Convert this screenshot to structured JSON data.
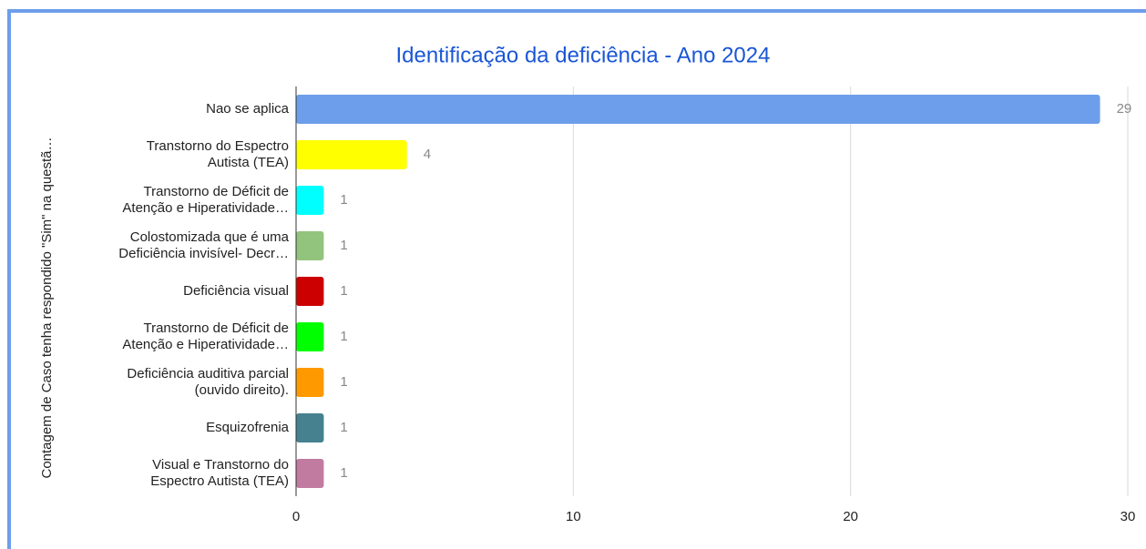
{
  "chart_data": {
    "type": "bar",
    "orientation": "horizontal",
    "title": "Identificação da deficiência - Ano 2024",
    "y_label": "Contagem de Caso tenha respondido \"Sim\" na questã…",
    "categories": [
      "Nao se aplica",
      "Transtorno do Espectro\nAutista (TEA)",
      "Transtorno de Déficit de\nAtenção e Hiperatividade…",
      "Colostomizada que é uma\nDeficiência invisível- Decr…",
      "Deficiência visual",
      "Transtorno de Déficit de\nAtenção e Hiperatividade…",
      "Deficiência auditiva parcial\n(ouvido direito).",
      "Esquizofrenia",
      "Visual e Transtorno do\nEspectro Autista (TEA)"
    ],
    "values": [
      29,
      4,
      1,
      1,
      1,
      1,
      1,
      1,
      1
    ],
    "colors": [
      "#6d9eeb",
      "#ffff00",
      "#00ffff",
      "#93c47d",
      "#cc0000",
      "#00ff00",
      "#ff9900",
      "#45818e",
      "#c27ba0"
    ],
    "xlim": [
      0,
      30
    ],
    "xticks": [
      0,
      10,
      20,
      30
    ],
    "grid": true
  }
}
